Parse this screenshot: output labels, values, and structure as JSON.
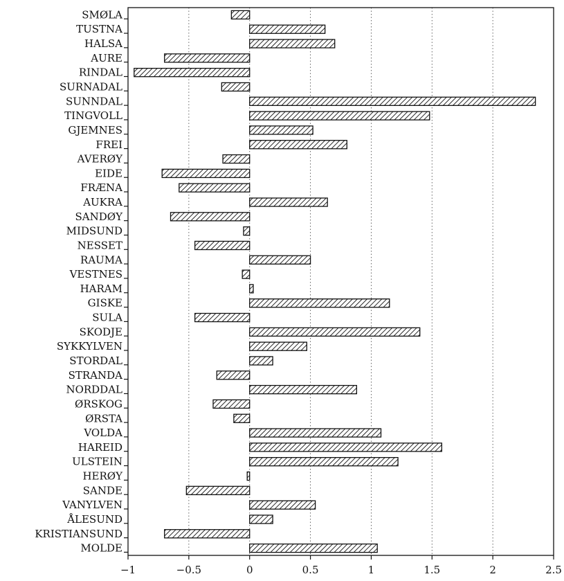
{
  "chart_data": {
    "type": "bar",
    "orientation": "horizontal",
    "title": "",
    "xlabel": "",
    "ylabel": "",
    "xlim": [
      -1,
      2.5
    ],
    "xticks": [
      -1,
      -0.5,
      0,
      0.5,
      1,
      1.5,
      2,
      2.5
    ],
    "xtick_labels": [
      "−1",
      "−0.5",
      "0",
      "0.5",
      "1",
      "1.5",
      "2",
      "2.5"
    ],
    "grid": "vertical dotted",
    "bar_fill": "diagonal hatch",
    "colors": {
      "bar_stroke": "#111111",
      "hatch": "#111111",
      "background": "#ffffff"
    },
    "categories": [
      "SMØLA",
      "TUSTNA",
      "HALSA",
      "AURE",
      "RINDAL",
      "SURNADAL",
      "SUNNDAL",
      "TINGVOLL",
      "GJEMNES",
      "FREI",
      "AVERØY",
      "EIDE",
      "FRÆNA",
      "AUKRA",
      "SANDØY",
      "MIDSUND",
      "NESSET",
      "RAUMA",
      "VESTNES",
      "HARAM",
      "GISKE",
      "SULA",
      "SKODJE",
      "SYKKYLVEN",
      "STORDAL",
      "STRANDA",
      "NORDDAL",
      "ØRSKOG",
      "ØRSTA",
      "VOLDA",
      "HAREID",
      "ULSTEIN",
      "HERØY",
      "SANDE",
      "VANYLVEN",
      "ÅLESUND",
      "KRISTIANSUND",
      "MOLDE"
    ],
    "values": [
      -0.15,
      0.62,
      0.7,
      -0.7,
      -0.95,
      -0.23,
      2.35,
      1.48,
      0.52,
      0.8,
      -0.22,
      -0.72,
      -0.58,
      0.64,
      -0.65,
      -0.05,
      -0.45,
      0.5,
      -0.06,
      0.03,
      1.15,
      -0.45,
      1.4,
      0.47,
      0.19,
      -0.27,
      0.88,
      -0.3,
      -0.13,
      1.08,
      1.58,
      1.22,
      -0.02,
      -0.52,
      0.54,
      0.19,
      -0.7,
      1.05
    ]
  }
}
